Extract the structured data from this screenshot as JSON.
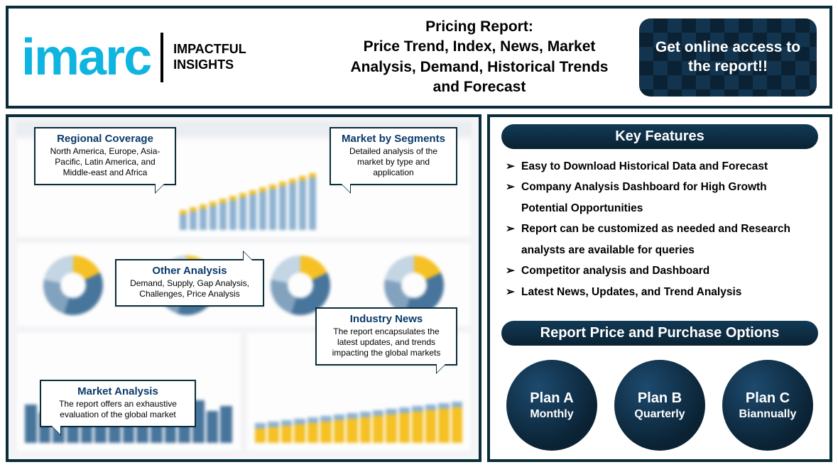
{
  "brand": {
    "logo_text": "imarc",
    "tagline_line1": "IMPACTFUL",
    "tagline_line2": "INSIGHTS",
    "logo_color": "#0fb5e0"
  },
  "header": {
    "title_line1": "Pricing Report:",
    "title_line2": "Price Trend, Index, News, Market Analysis, Demand, Historical Trends and Forecast"
  },
  "cta": {
    "text": "Get online access to the report!!",
    "bg_dark": "#0a2233",
    "bg_light": "#12344e"
  },
  "callouts": {
    "regional": {
      "title": "Regional Coverage",
      "body": "North America, Europe, Asia-Pacific, Latin America, and Middle-east and Africa"
    },
    "segments": {
      "title": "Market by Segments",
      "body": "Detailed analysis of the market by type and application"
    },
    "other": {
      "title": "Other Analysis",
      "body": "Demand, Supply, Gap Analysis, Challenges, Price Analysis"
    },
    "news": {
      "title": "Industry News",
      "body": "The report encapsulates the latest updates, and trends impacting the global markets"
    },
    "market": {
      "title": "Market Analysis",
      "body": "The report offers an exhaustive evaluation of the global market"
    }
  },
  "key_features": {
    "heading": "Key Features",
    "items": [
      "Easy to Download Historical Data and Forecast",
      "Company Analysis Dashboard for High Growth Potential Opportunities",
      "Report can be customized as needed and Research analysts are available for queries",
      "Competitor analysis and Dashboard",
      "Latest News, Updates, and Trend Analysis"
    ]
  },
  "pricing": {
    "heading": "Report Price and Purchase Options",
    "plans": [
      {
        "name": "Plan A",
        "period": "Monthly"
      },
      {
        "name": "Plan B",
        "period": "Quarterly"
      },
      {
        "name": "Plan C",
        "period": "Biannually"
      }
    ]
  },
  "dashboard_style": {
    "background": "#f5f5f7",
    "panel_bg": "#ffffff",
    "border": "#e2e6ea",
    "bar_color": "#7ea8cc",
    "bar_cap_color": "#f5b800",
    "donut_colors": [
      "#f5b800",
      "#2b5f8c",
      "#6f94b5",
      "#bcd0e0"
    ],
    "top_bars": {
      "count": 14,
      "heights": [
        22,
        26,
        30,
        34,
        38,
        42,
        46,
        50,
        54,
        58,
        62,
        66,
        70,
        74
      ]
    },
    "left_bottom_bars": {
      "count": 15,
      "color": "#2b5f8c",
      "heights": [
        54,
        43,
        60,
        50,
        55,
        48,
        62,
        46,
        58,
        50,
        55,
        40,
        60,
        45,
        52
      ]
    },
    "right_bottom_bars": {
      "count": 16,
      "heights": [
        28,
        30,
        32,
        34,
        36,
        38,
        40,
        42,
        44,
        46,
        48,
        50,
        52,
        54,
        56,
        58
      ]
    },
    "side_bars": {
      "colors": [
        "#f5b800",
        "#7ea8cc",
        "#bcd0e0"
      ],
      "heights": [
        80,
        60,
        45
      ]
    }
  },
  "frame": {
    "border_color": "#0a2d3a",
    "title_color": "#0a3a6b"
  }
}
